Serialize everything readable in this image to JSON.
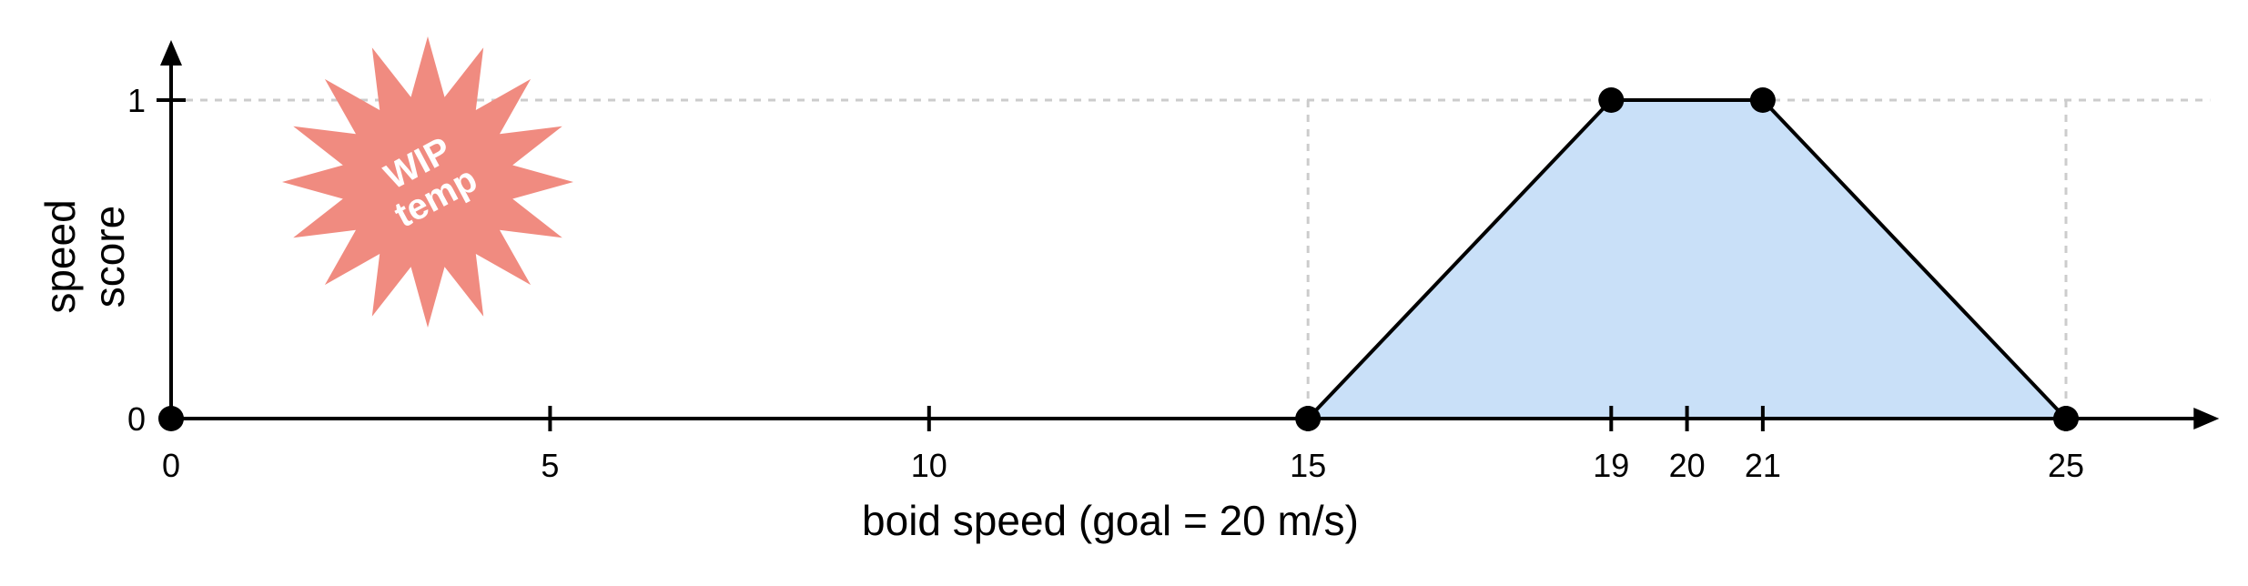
{
  "chart_data": {
    "type": "area",
    "xlabel": "boid speed (goal = 20 m/s)",
    "ylabel": [
      "speed",
      "score"
    ],
    "xlim": [
      0,
      26
    ],
    "ylim": [
      0,
      1
    ],
    "x_ticks": [
      0,
      5,
      10,
      15,
      19,
      20,
      21,
      25
    ],
    "y_ticks": [
      0,
      1
    ],
    "grid": "dashed gray guides at y = 1 and x = 15, 19, 21, 25",
    "series": [
      {
        "points": [
          {
            "x": 15,
            "y": 0
          },
          {
            "x": 19,
            "y": 1
          },
          {
            "x": 21,
            "y": 1
          },
          {
            "x": 25,
            "y": 0
          }
        ]
      }
    ],
    "highlighted_points": [
      {
        "x": 0,
        "y": 0
      },
      {
        "x": 15,
        "y": 0
      },
      {
        "x": 19,
        "y": 1
      },
      {
        "x": 21,
        "y": 1
      },
      {
        "x": 25,
        "y": 0
      }
    ],
    "annotation": {
      "lines": [
        "WIP",
        "temp"
      ],
      "shape": "starburst"
    }
  },
  "colors": {
    "fill": "#c9e0f8",
    "line": "#000000",
    "guide": "#cccccc",
    "badge": "#f08b80",
    "badge_text": "#ffffff"
  }
}
